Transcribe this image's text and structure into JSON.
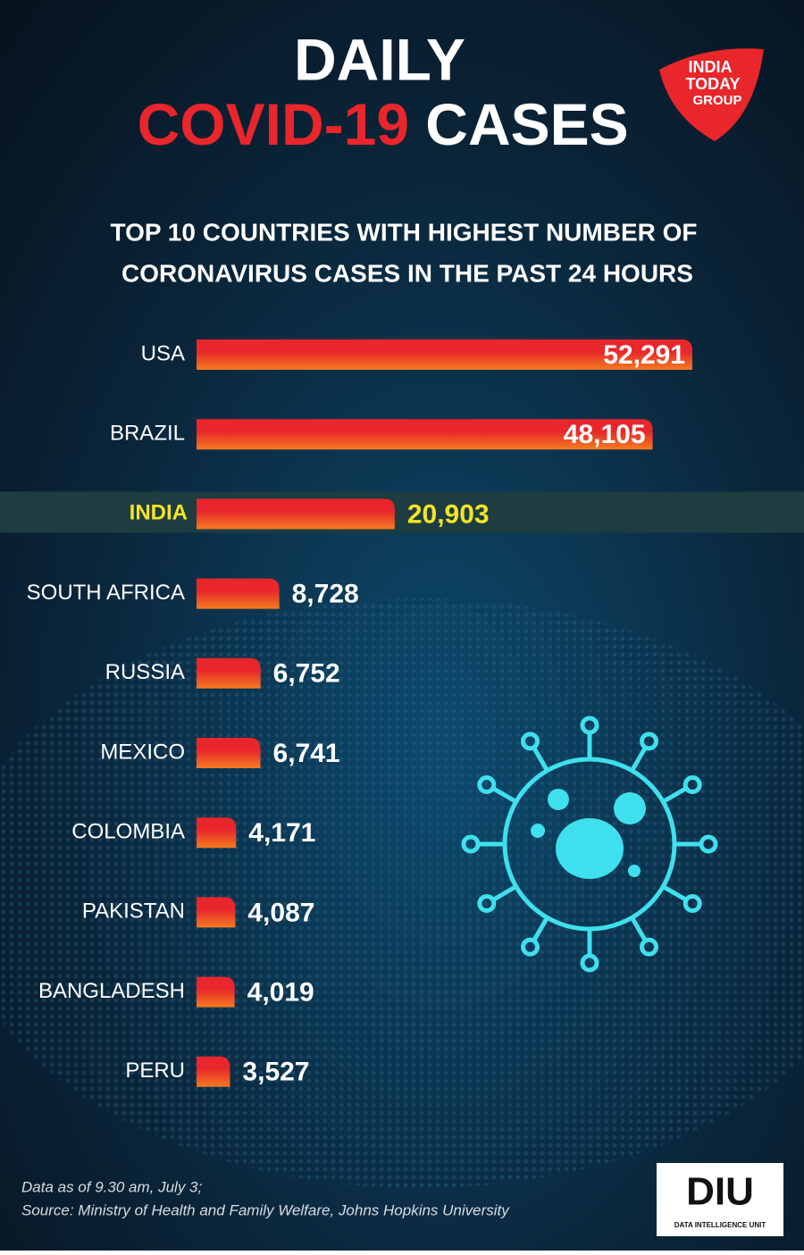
{
  "chart_data": {
    "type": "bar",
    "orientation": "horizontal",
    "title": [
      "DAILY",
      "COVID-19",
      "CASES"
    ],
    "subtitle": [
      "TOP 10 COUNTRIES WITH HIGHEST NUMBER OF",
      "CORONAVIRUS CASES IN THE PAST 24 HOURS"
    ],
    "categories": [
      "USA",
      "BRAZIL",
      "INDIA",
      "SOUTH AFRICA",
      "RUSSIA",
      "MEXICO",
      "COLOMBIA",
      "PAKISTAN",
      "BANGLADESH",
      "PERU"
    ],
    "values": [
      52291,
      48105,
      20903,
      8728,
      6752,
      6741,
      4171,
      4087,
      4019,
      3527
    ],
    "value_labels": [
      "52,291",
      "48,105",
      "20,903",
      "8,728",
      "6,752",
      "6,741",
      "4,171",
      "4,087",
      "4,019",
      "3,527"
    ],
    "color": "#e8262b",
    "highlight": {
      "category": 2,
      "color": "#f4e424"
    },
    "notes": [
      "Data as of 9.30 am, July 3;",
      "Source: Ministry of Health and Family Welfare, Johns Hopkins University"
    ]
  },
  "logos": {
    "publisher": [
      "INDIA",
      "TODAY",
      "GROUP"
    ],
    "unit": "DIU",
    "unit_caption": "DATA INTELLIGENCE UNIT"
  }
}
